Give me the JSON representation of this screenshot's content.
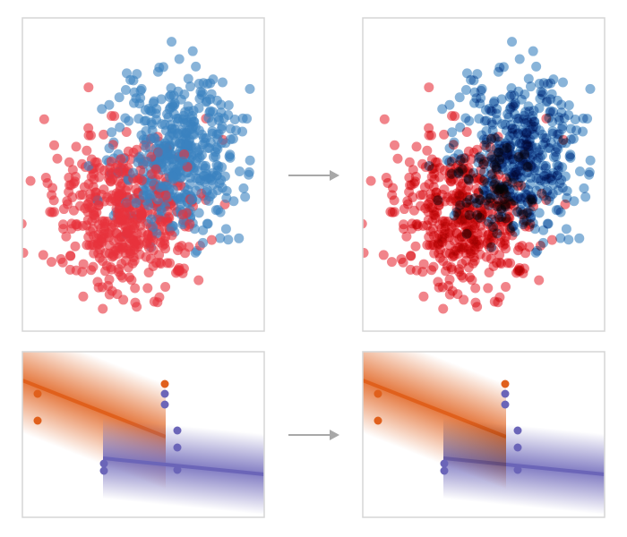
{
  "colors": {
    "red": "#e8323c",
    "blue": "#3b82c0",
    "orange": "#e0601c",
    "purple": "#6b65b8",
    "arrow": "#a8a8a8",
    "frame": "#d6d6d6"
  }
}
